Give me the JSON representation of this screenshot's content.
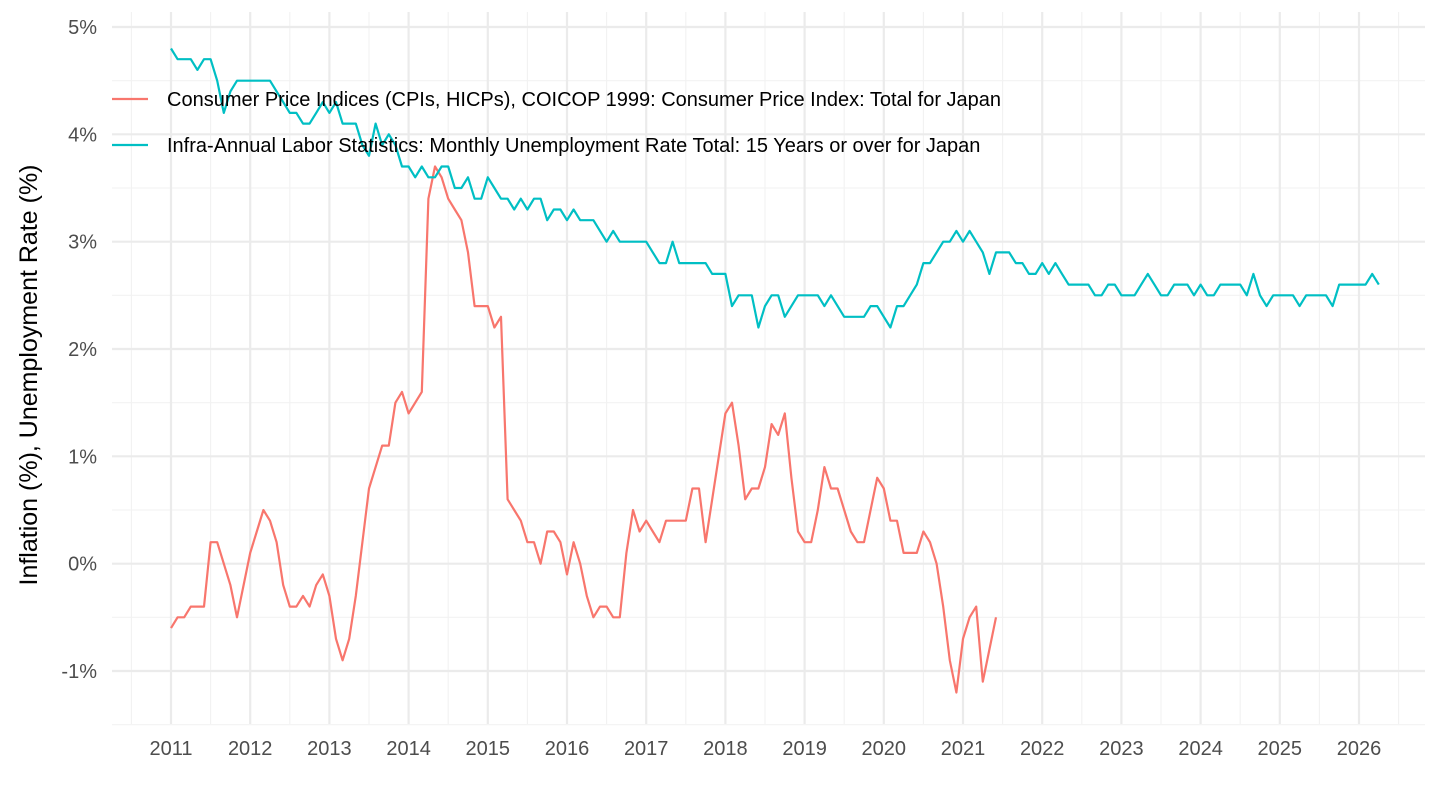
{
  "chart_data": {
    "type": "line",
    "title": "",
    "xlabel": "",
    "ylabel": "Inflation (%), Unemployment Rate (%)",
    "x_start": "2011-01",
    "x_frequency": "monthly",
    "xlim": [
      2010.4,
      2027.0
    ],
    "ylim": [
      -1.5,
      5.1
    ],
    "x_ticks": [
      "2011",
      "2012",
      "2013",
      "2014",
      "2015",
      "2016",
      "2017",
      "2018",
      "2019",
      "2020",
      "2021",
      "2022",
      "2023",
      "2024",
      "2025",
      "2026"
    ],
    "y_ticks": [
      -1,
      0,
      1,
      2,
      3,
      4,
      5
    ],
    "y_tick_labels": [
      "-1%",
      "0%",
      "1%",
      "2%",
      "3%",
      "4%",
      "5%"
    ],
    "grid": true,
    "legend_position": "top-left inside",
    "series": [
      {
        "name": "Consumer Price Indices (CPIs, HICPs), COICOP 1999: Consumer Price Index: Total for Japan",
        "color": "#F8766D",
        "start": "2011-01",
        "values": [
          -0.6,
          -0.5,
          -0.5,
          -0.4,
          -0.4,
          -0.4,
          0.2,
          0.2,
          0.0,
          -0.2,
          -0.5,
          -0.2,
          0.1,
          0.3,
          0.5,
          0.4,
          0.2,
          -0.2,
          -0.4,
          -0.4,
          -0.3,
          -0.4,
          -0.2,
          -0.1,
          -0.3,
          -0.7,
          -0.9,
          -0.7,
          -0.3,
          0.2,
          0.7,
          0.9,
          1.1,
          1.1,
          1.5,
          1.6,
          1.4,
          1.5,
          1.6,
          3.4,
          3.7,
          3.6,
          3.4,
          3.3,
          3.2,
          2.9,
          2.4,
          2.4,
          2.4,
          2.2,
          2.3,
          0.6,
          0.5,
          0.4,
          0.2,
          0.2,
          0.0,
          0.3,
          0.3,
          0.2,
          -0.1,
          0.2,
          0.0,
          -0.3,
          -0.5,
          -0.4,
          -0.4,
          -0.5,
          -0.5,
          0.1,
          0.5,
          0.3,
          0.4,
          0.3,
          0.2,
          0.4,
          0.4,
          0.4,
          0.4,
          0.7,
          0.7,
          0.2,
          0.6,
          1.0,
          1.4,
          1.5,
          1.1,
          0.6,
          0.7,
          0.7,
          0.9,
          1.3,
          1.2,
          1.4,
          0.8,
          0.3,
          0.2,
          0.2,
          0.5,
          0.9,
          0.7,
          0.7,
          0.5,
          0.3,
          0.2,
          0.2,
          0.5,
          0.8,
          0.7,
          0.4,
          0.4,
          0.1,
          0.1,
          0.1,
          0.3,
          0.2,
          0.0,
          -0.4,
          -0.9,
          -1.2,
          -0.7,
          -0.5,
          -0.4,
          -1.1,
          -0.8,
          -0.5
        ]
      },
      {
        "name": "Infra-Annual Labor Statistics: Monthly Unemployment Rate Total: 15 Years or over for Japan",
        "color": "#00BFC4",
        "start": "2011-01",
        "values": [
          4.8,
          4.7,
          4.7,
          4.7,
          4.6,
          4.7,
          4.7,
          4.5,
          4.2,
          4.4,
          4.5,
          4.5,
          4.5,
          4.5,
          4.5,
          4.5,
          4.4,
          4.3,
          4.2,
          4.2,
          4.1,
          4.1,
          4.2,
          4.3,
          4.2,
          4.3,
          4.1,
          4.1,
          4.1,
          3.9,
          3.8,
          4.1,
          3.9,
          4.0,
          3.9,
          3.7,
          3.7,
          3.6,
          3.7,
          3.6,
          3.6,
          3.7,
          3.7,
          3.5,
          3.5,
          3.6,
          3.4,
          3.4,
          3.6,
          3.5,
          3.4,
          3.4,
          3.3,
          3.4,
          3.3,
          3.4,
          3.4,
          3.2,
          3.3,
          3.3,
          3.2,
          3.3,
          3.2,
          3.2,
          3.2,
          3.1,
          3.0,
          3.1,
          3.0,
          3.0,
          3.0,
          3.0,
          3.0,
          2.9,
          2.8,
          2.8,
          3.0,
          2.8,
          2.8,
          2.8,
          2.8,
          2.8,
          2.7,
          2.7,
          2.7,
          2.4,
          2.5,
          2.5,
          2.5,
          2.2,
          2.4,
          2.5,
          2.5,
          2.3,
          2.4,
          2.5,
          2.5,
          2.5,
          2.5,
          2.4,
          2.5,
          2.4,
          2.3,
          2.3,
          2.3,
          2.3,
          2.4,
          2.4,
          2.3,
          2.2,
          2.4,
          2.4,
          2.5,
          2.6,
          2.8,
          2.8,
          2.9,
          3.0,
          3.0,
          3.1,
          3.0,
          3.1,
          3.0,
          2.9,
          2.7,
          2.9,
          2.9,
          2.9,
          2.8,
          2.8,
          2.7,
          2.7,
          2.8,
          2.7,
          2.8,
          2.7,
          2.6,
          2.6,
          2.6,
          2.6,
          2.5,
          2.5,
          2.6,
          2.6,
          2.5,
          2.5,
          2.5,
          2.6,
          2.7,
          2.6,
          2.5,
          2.5,
          2.6,
          2.6,
          2.6,
          2.5,
          2.6,
          2.5,
          2.5,
          2.6,
          2.6,
          2.6,
          2.6,
          2.5,
          2.7,
          2.5,
          2.4,
          2.5,
          2.5,
          2.5,
          2.5,
          2.4,
          2.5,
          2.5,
          2.5,
          2.5,
          2.4,
          2.6,
          2.6,
          2.6,
          2.6,
          2.6,
          2.7,
          2.6
        ]
      }
    ]
  }
}
